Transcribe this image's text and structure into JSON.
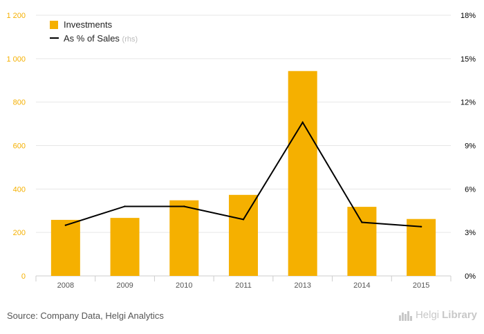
{
  "chart_data": {
    "type": "bar",
    "categories": [
      "2008",
      "2009",
      "2010",
      "2011",
      "2013",
      "2014",
      "2015"
    ],
    "series": [
      {
        "name": "Investments",
        "type": "bar",
        "axis": "left",
        "color": "#f5b000",
        "values": [
          258,
          267,
          348,
          373,
          943,
          318,
          262
        ]
      },
      {
        "name": "As % of Sales",
        "type": "line",
        "axis": "right",
        "color": "#000000",
        "values": [
          3.5,
          4.8,
          4.8,
          3.9,
          10.6,
          3.7,
          3.4
        ]
      }
    ],
    "left_axis": {
      "ylim": [
        0,
        1200
      ],
      "ticks": [
        0,
        200,
        400,
        600,
        800,
        1000,
        1200
      ],
      "tick_labels": [
        "0",
        "200",
        "400",
        "600",
        "800",
        "1 000",
        "1 200"
      ],
      "color": "#f5b000"
    },
    "right_axis": {
      "ylim": [
        0,
        18
      ],
      "ticks": [
        0,
        3,
        6,
        9,
        12,
        15,
        18
      ],
      "tick_labels": [
        "0%",
        "3%",
        "6%",
        "9%",
        "12%",
        "15%",
        "18%"
      ],
      "color": "#000000"
    },
    "legend": {
      "placement": "top-left",
      "items": [
        {
          "label": "Investments",
          "suffix": ""
        },
        {
          "label": "As % of Sales",
          "suffix": "(rhs)"
        }
      ]
    },
    "grid": true
  },
  "footer": {
    "source": "Source: Company Data, Helgi Analytics"
  },
  "brand": {
    "name_light": "Helgi",
    "name_strong": "Library"
  }
}
